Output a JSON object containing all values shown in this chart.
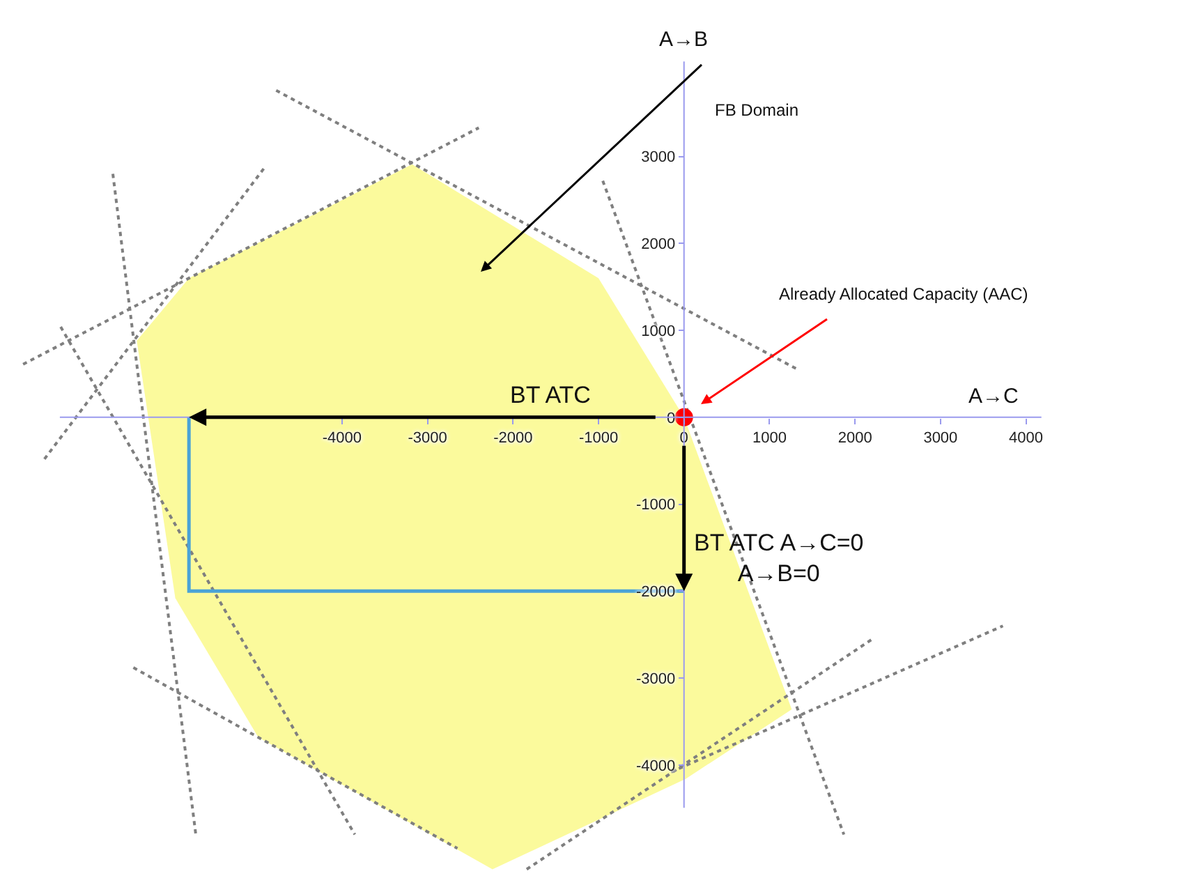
{
  "chart_data": {
    "type": "line",
    "xlim": [
      -8000,
      6000
    ],
    "ylim": [
      -5300,
      4800
    ],
    "xticks": [
      -4000,
      -3000,
      -2000,
      -1000,
      0,
      1000,
      2000,
      3000,
      4000
    ],
    "yticks": [
      -4000,
      -3000,
      -2000,
      -1000,
      0,
      1000,
      2000,
      3000
    ],
    "grid": false,
    "series": [
      {
        "type": "area",
        "color": "#fbfa9c",
        "x": [
          -6400,
          -5790,
          -3180,
          -1000,
          0,
          1260,
          20,
          -2240,
          -4980,
          -5950,
          -6400
        ],
        "values": [
          880,
          1600,
          2910,
          1600,
          0,
          -3360,
          -4160,
          -5200,
          -3680,
          -2080,
          880
        ]
      },
      {
        "color": "#7f7f7f",
        "line_style": "dotted",
        "x": [
          -4770,
          1310
        ],
        "values": [
          3760,
          560
        ]
      },
      {
        "color": "#7f7f7f",
        "line_style": "dotted",
        "x": [
          -7730,
          -2400
        ],
        "values": [
          610,
          3330
        ]
      },
      {
        "color": "#7f7f7f",
        "line_style": "dotted",
        "x": [
          -6680,
          -5710
        ],
        "values": [
          2800,
          -4800
        ]
      },
      {
        "color": "#7f7f7f",
        "line_style": "dotted",
        "x": [
          -7480,
          -4900
        ],
        "values": [
          -480,
          2880
        ]
      },
      {
        "color": "#7f7f7f",
        "line_style": "dotted",
        "x": [
          -7290,
          -3850
        ],
        "values": [
          1040,
          -4800
        ]
      },
      {
        "color": "#7f7f7f",
        "line_style": "dotted",
        "x": [
          -6440,
          -2650
        ],
        "values": [
          -2880,
          -4960
        ]
      },
      {
        "color": "#7f7f7f",
        "line_style": "dotted",
        "x": [
          -950,
          1870
        ],
        "values": [
          2720,
          -4800
        ]
      },
      {
        "color": "#7f7f7f",
        "line_style": "dotted",
        "x": [
          -1840,
          2190
        ],
        "values": [
          -5200,
          -2560
        ]
      },
      {
        "color": "#7f7f7f",
        "line_style": "dotted",
        "x": [
          -150,
          3730
        ],
        "values": [
          -4080,
          -2400
        ]
      },
      {
        "color": "#4ba3d6",
        "line_style": "solid",
        "x": [
          -5790,
          -5790,
          0
        ],
        "values": [
          0,
          -2000,
          -2000
        ]
      },
      {
        "type": "scatter",
        "color": "#ff0000",
        "marker": "circle",
        "x": [
          0
        ],
        "values": [
          0
        ]
      }
    ],
    "annotations": [
      "A→B",
      "A→C",
      "FB Domain",
      "Already Allocated Capacity (AAC)",
      "BT ATC",
      "BT ATC A→C=0\nA→B=0"
    ]
  }
}
